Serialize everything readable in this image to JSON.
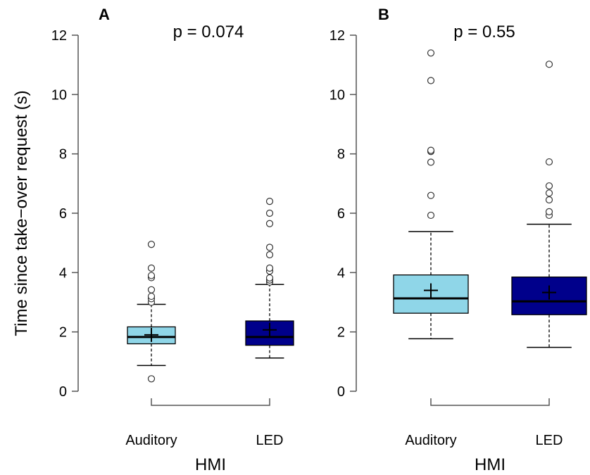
{
  "chart_data": [
    {
      "type": "box",
      "panel": "A",
      "annotation": "p = 0.074",
      "xlabel": "HMI",
      "ylabel": "Time since take−over request (s)",
      "ylim": [
        0,
        12
      ],
      "yticks": [
        0,
        2,
        4,
        6,
        8,
        10,
        12
      ],
      "categories": [
        "Auditory",
        "LED"
      ],
      "boxes": [
        {
          "category": "Auditory",
          "color": "#8fd6e8",
          "q1": 1.6,
          "median": 1.83,
          "q3": 2.17,
          "whisker_low": 0.87,
          "whisker_high": 2.93,
          "mean": 1.9,
          "outliers": [
            0.42,
            3.0,
            3.12,
            3.2,
            3.42,
            3.83,
            3.9,
            4.15,
            4.95
          ]
        },
        {
          "category": "LED",
          "color": "#00008b",
          "q1": 1.55,
          "median": 1.83,
          "q3": 2.37,
          "whisker_low": 1.12,
          "whisker_high": 3.6,
          "mean": 2.07,
          "outliers": [
            3.68,
            3.75,
            3.82,
            4.05,
            4.15,
            4.6,
            4.85,
            5.65,
            6.0,
            6.4
          ]
        }
      ]
    },
    {
      "type": "box",
      "panel": "B",
      "annotation": "p = 0.55",
      "xlabel": "HMI",
      "ylabel": "",
      "ylim": [
        0,
        12
      ],
      "yticks": [
        0,
        2,
        4,
        6,
        8,
        10,
        12
      ],
      "categories": [
        "Auditory",
        "LED"
      ],
      "boxes": [
        {
          "category": "Auditory",
          "color": "#8fd6e8",
          "q1": 2.63,
          "median": 3.13,
          "q3": 3.92,
          "whisker_low": 1.77,
          "whisker_high": 5.38,
          "mean": 3.4,
          "outliers": [
            5.93,
            6.6,
            7.72,
            8.08,
            8.12,
            10.47,
            11.4
          ]
        },
        {
          "category": "LED",
          "color": "#00008b",
          "q1": 2.58,
          "median": 3.03,
          "q3": 3.85,
          "whisker_low": 1.48,
          "whisker_high": 5.63,
          "mean": 3.33,
          "outliers": [
            5.93,
            6.05,
            6.45,
            6.68,
            6.92,
            7.73,
            11.02
          ]
        }
      ]
    }
  ]
}
